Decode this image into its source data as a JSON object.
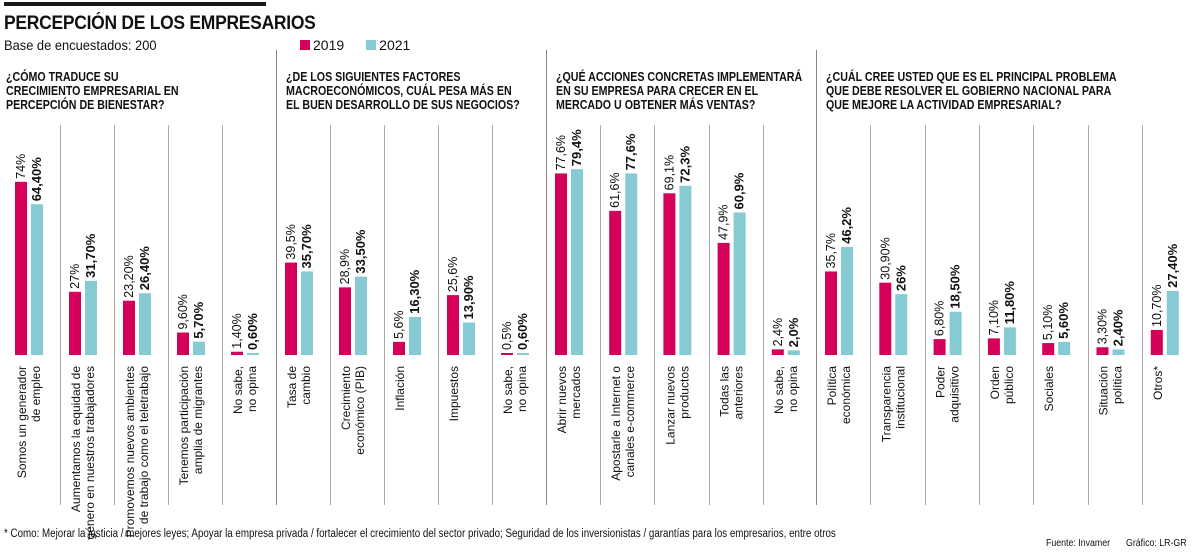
{
  "header": {
    "title": "PERCEPCIÓN DE LOS EMPRESARIOS",
    "subtitle": "Base de encuestados: 200"
  },
  "legend": [
    {
      "label": "2019",
      "color": "#d4005a"
    },
    {
      "label": "2021",
      "color": "#86cad3"
    }
  ],
  "footer": {
    "footnote": "* Como: Mejorar la justicia / mejores leyes; Apoyar la empresa privada / fortalecer el crecimiento del sector privado; Seguridad de los inversionistas / garantías para los empresarios, entre otros",
    "source": "Fuente: Invamer",
    "credit": "Gráfico: LR-GR"
  },
  "chart_data": [
    {
      "type": "bar",
      "title": "¿CÓMO TRADUCE SU CRECIMIENTO EMPRESARIAL EN PERCEPCIÓN DE BIENESTAR?",
      "title_lines": [
        "¿CÓMO TRADUCE SU",
        "CRECIMIENTO EMPRESARIAL EN",
        "PERCEPCIÓN DE BIENESTAR?"
      ],
      "categories": [
        [
          "Somos un generador",
          "de empleo"
        ],
        [
          "Aumentamos la equidad de",
          "género en nuestros trabajadores"
        ],
        [
          "Promovemos nuevos ambientes",
          "de trabajo como el teletrabajo"
        ],
        [
          "Tenemos participación",
          "amplia de migrantes"
        ],
        [
          "No sabe,",
          "no opina"
        ]
      ],
      "series": [
        {
          "name": "2019",
          "values": [
            74,
            27,
            23.2,
            9.6,
            1.4
          ],
          "labels": [
            "74%",
            "27%",
            "23,20%",
            "9,60%",
            "1,40%"
          ]
        },
        {
          "name": "2021",
          "values": [
            64.4,
            31.7,
            26.4,
            5.7,
            0.6
          ],
          "labels": [
            "64,40%",
            "31,70%",
            "26,40%",
            "5,70%",
            "0,60%"
          ]
        }
      ],
      "unit": "%",
      "ylim": [
        0,
        80
      ],
      "grid": false,
      "legend": "top"
    },
    {
      "type": "bar",
      "title": "¿DE LOS SIGUIENTES FACTORES MACROECONÓMICOS, CUÁL PESA MÁS EN EL BUEN DESARROLLO DE SUS NEGOCIOS?",
      "title_lines": [
        "¿DE LOS SIGUIENTES FACTORES",
        "MACROECONÓMICOS, CUÁL PESA MÁS EN",
        "EL BUEN DESARROLLO DE SUS NEGOCIOS?"
      ],
      "categories": [
        [
          "Tasa de",
          "cambio"
        ],
        [
          "Crecimiento",
          "económico (PIB)"
        ],
        [
          "Inflación"
        ],
        [
          "Impuestos"
        ],
        [
          "No sabe,",
          "no opina"
        ]
      ],
      "series": [
        {
          "name": "2019",
          "values": [
            39.5,
            28.9,
            5.6,
            25.6,
            0.5
          ],
          "labels": [
            "39,5%",
            "28,9%",
            "5,6%",
            "25,6%",
            "0,5%"
          ]
        },
        {
          "name": "2021",
          "values": [
            35.7,
            33.5,
            16.3,
            13.9,
            0.6
          ],
          "labels": [
            "35,70%",
            "33,50%",
            "16,30%",
            "13,90%",
            "0,60%"
          ]
        }
      ],
      "unit": "%",
      "ylim": [
        0,
        80
      ],
      "grid": false,
      "legend": "top"
    },
    {
      "type": "bar",
      "title": "¿QUÉ ACCIONES CONCRETAS IMPLEMENTARÁ EN SU EMPRESA PARA CRECER EN EL MERCADO U OBTENER MÁS VENTAS?",
      "title_lines": [
        "¿QUÉ ACCIONES CONCRETAS IMPLEMENTARÁ",
        "EN SU EMPRESA PARA CRECER EN EL",
        "MERCADO U OBTENER MÁS VENTAS?"
      ],
      "categories": [
        [
          "Abrir nuevos",
          "mercados"
        ],
        [
          "Apostarle a Internet o",
          "canales e-commerce"
        ],
        [
          "Lanzar nuevos",
          "productos"
        ],
        [
          "Todas las",
          "anteriores"
        ],
        [
          "No sabe,",
          "no opina"
        ]
      ],
      "series": [
        {
          "name": "2019",
          "values": [
            77.6,
            61.6,
            69.1,
            47.9,
            2.4
          ],
          "labels": [
            "77,6%",
            "61,6%",
            "69,1%",
            "47,9%",
            "2,4%"
          ]
        },
        {
          "name": "2021",
          "values": [
            79.4,
            77.6,
            72.3,
            60.9,
            2.0
          ],
          "labels": [
            "79,4%",
            "77,6%",
            "72,3%",
            "60,9%",
            "2,0%"
          ]
        }
      ],
      "unit": "%",
      "ylim": [
        0,
        80
      ],
      "grid": false,
      "legend": "top"
    },
    {
      "type": "bar",
      "title": "¿CUÁL CREE USTED QUE ES EL PRINCIPAL PROBLEMA QUE DEBE RESOLVER EL GOBIERNO NACIONAL PARA QUE MEJORE LA ACTIVIDAD EMPRESARIAL?",
      "title_lines": [
        "¿CUÁL CREE USTED QUE ES EL PRINCIPAL PROBLEMA",
        "QUE DEBE RESOLVER EL GOBIERNO NACIONAL PARA",
        "QUE MEJORE LA ACTIVIDAD EMPRESARIAL?"
      ],
      "categories": [
        [
          "Política",
          "económica"
        ],
        [
          "Transparencia",
          "institucional"
        ],
        [
          "Poder",
          "adquisitivo"
        ],
        [
          "Orden",
          "público"
        ],
        [
          "Sociales"
        ],
        [
          "Situación",
          "política"
        ],
        [
          "Otros*"
        ]
      ],
      "series": [
        {
          "name": "2019",
          "values": [
            35.7,
            30.9,
            6.8,
            7.1,
            5.1,
            3.3,
            10.7
          ],
          "labels": [
            "35,7%",
            "30,90%",
            "6,80%",
            "7,10%",
            "5,10%",
            "3,30%",
            "10,70%"
          ]
        },
        {
          "name": "2021",
          "values": [
            46.2,
            26,
            18.5,
            11.8,
            5.6,
            2.4,
            27.4
          ],
          "labels": [
            "46,2%",
            "26%",
            "18,50%",
            "11,80%",
            "5,60%",
            "2,40%",
            "27,40%"
          ]
        }
      ],
      "unit": "%",
      "ylim": [
        0,
        80
      ],
      "grid": false,
      "legend": "top"
    }
  ]
}
